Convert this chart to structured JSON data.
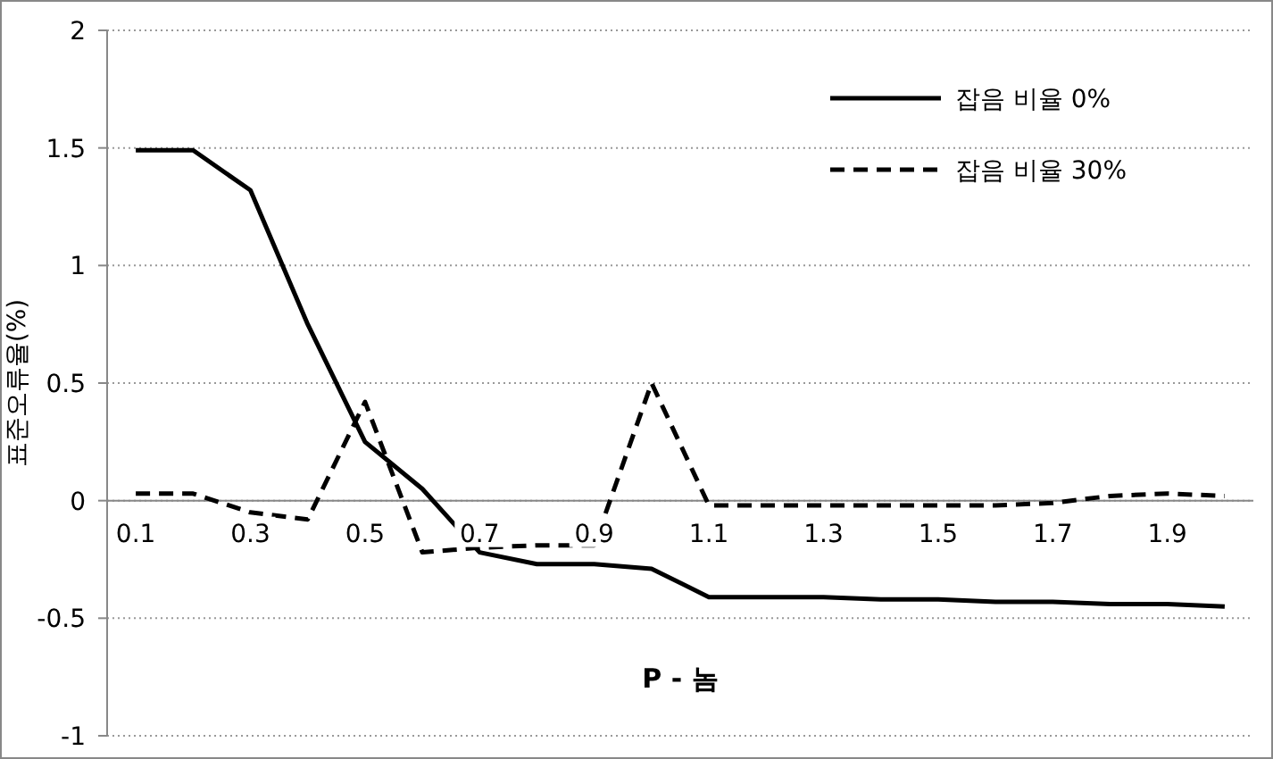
{
  "chart_data": {
    "type": "line",
    "xlabel": "P - 놈",
    "ylabel": "표준오류율(%)",
    "categories": [
      "0.1",
      null,
      "0.3",
      null,
      "0.5",
      null,
      "0.7",
      null,
      "0.9",
      null,
      "1.1",
      null,
      "1.3",
      null,
      "1.5",
      null,
      "1.7",
      null,
      "1.9",
      null
    ],
    "series": [
      {
        "name": "잡음 비율 0%",
        "color": "#000000",
        "line_style": "solid",
        "values": [
          1.49,
          1.49,
          1.32,
          0.75,
          0.25,
          0.05,
          -0.22,
          -0.27,
          -0.27,
          -0.29,
          -0.41,
          -0.41,
          -0.41,
          -0.42,
          -0.42,
          -0.43,
          -0.43,
          -0.44,
          -0.44,
          -0.45
        ]
      },
      {
        "name": "잡음 비율 30%",
        "color": "#000000",
        "line_style": "dashed",
        "values": [
          0.03,
          0.03,
          -0.05,
          -0.08,
          0.42,
          -0.22,
          -0.2,
          -0.19,
          -0.19,
          0.5,
          -0.02,
          -0.02,
          -0.02,
          -0.02,
          -0.02,
          -0.02,
          -0.01,
          0.02,
          0.03,
          0.02
        ]
      }
    ],
    "ylim": [
      -1,
      2
    ],
    "yticks": [
      -1,
      -0.5,
      0,
      0.5,
      1,
      1.5,
      2
    ],
    "grid": "y",
    "legend": "top right"
  }
}
